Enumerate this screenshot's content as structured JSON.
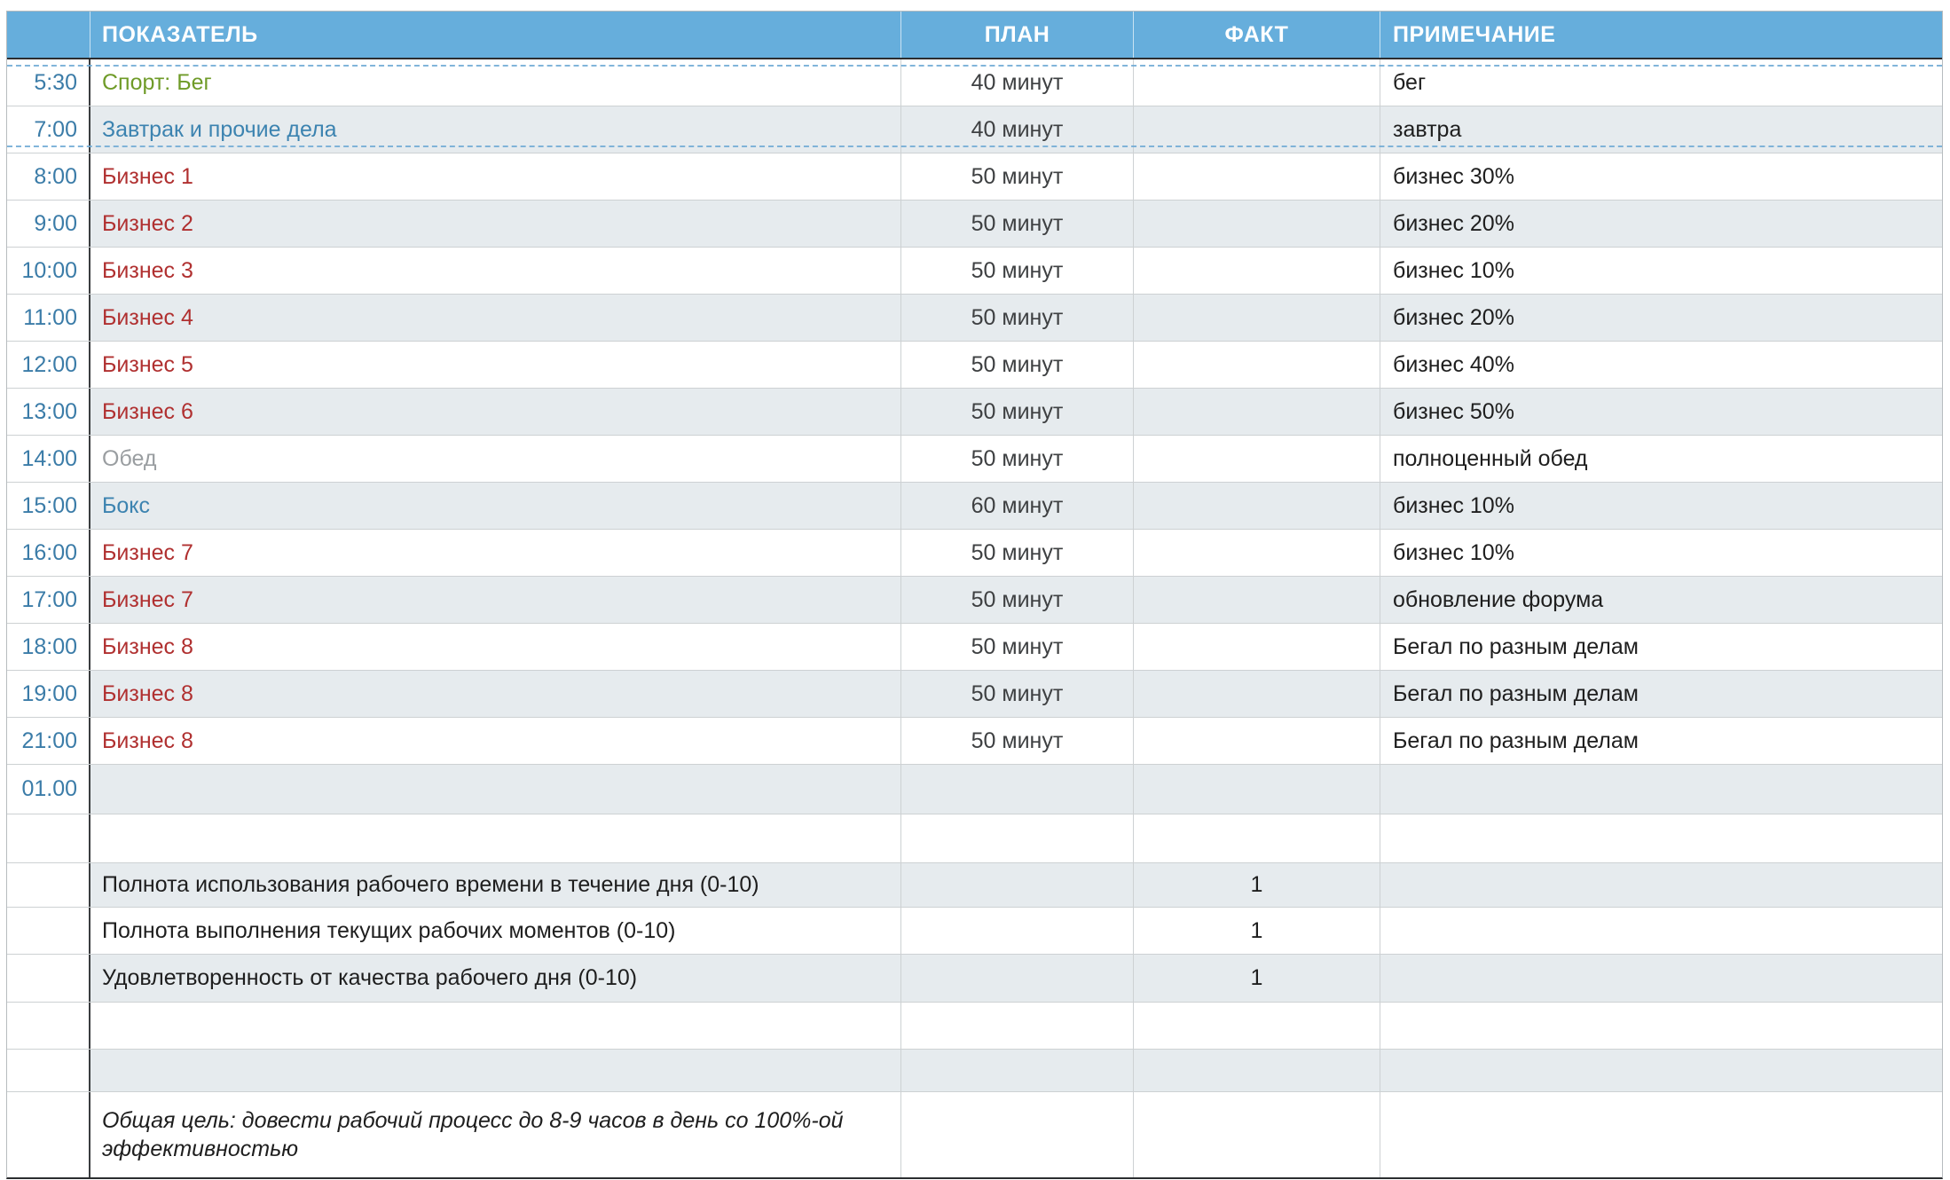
{
  "colors": {
    "header_bg": "#66AEDC",
    "header_text": "#FFFFFF",
    "time": "#3B7CA8",
    "green": "#6F9B28",
    "blue": "#3C83B0",
    "red": "#B03030",
    "gray": "#9A9EA1",
    "plan_text": "#3E4042",
    "note_text": "#1E1E1E",
    "tint": "#E6EBEE",
    "grid": "#CDD1D3",
    "dark": "#3A3D3F",
    "marquee": "#74ADD6"
  },
  "table": {
    "header": {
      "time": "",
      "indicator": "ПОКАЗАТЕЛЬ",
      "plan": "ПЛАН",
      "fact": "ФАКТ",
      "note": "ПРИМЕЧАНИЕ"
    },
    "rows": [
      {
        "kind": "schedule",
        "time": "5:30",
        "indicator": "Спорт: Бег",
        "color": "green",
        "plan": "40 минут",
        "fact": "",
        "note": "бег"
      },
      {
        "kind": "schedule",
        "time": "7:00",
        "indicator": "Завтрак и прочие дела",
        "color": "blue",
        "plan": "40 минут",
        "fact": "",
        "note": "завтра"
      },
      {
        "kind": "schedule",
        "time": "8:00",
        "indicator": "Бизнес 1",
        "color": "red",
        "plan": "50 минут",
        "fact": "",
        "note": "бизнес 30%"
      },
      {
        "kind": "schedule",
        "time": "9:00",
        "indicator": "Бизнес 2",
        "color": "red",
        "plan": "50 минут",
        "fact": "",
        "note": "бизнес 20%"
      },
      {
        "kind": "schedule",
        "time": "10:00",
        "indicator": "Бизнес 3",
        "color": "red",
        "plan": "50 минут",
        "fact": "",
        "note": "бизнес 10%"
      },
      {
        "kind": "schedule",
        "time": "11:00",
        "indicator": "Бизнес 4",
        "color": "red",
        "plan": "50 минут",
        "fact": "",
        "note": "бизнес 20%"
      },
      {
        "kind": "schedule",
        "time": "12:00",
        "indicator": "Бизнес 5",
        "color": "red",
        "plan": "50 минут",
        "fact": "",
        "note": "бизнес 40%"
      },
      {
        "kind": "schedule",
        "time": "13:00",
        "indicator": "Бизнес 6",
        "color": "red",
        "plan": "50 минут",
        "fact": "",
        "note": "бизнес 50%"
      },
      {
        "kind": "schedule",
        "time": "14:00",
        "indicator": "Обед",
        "color": "gray",
        "plan": "50 минут",
        "fact": "",
        "note": "полноценный обед"
      },
      {
        "kind": "schedule",
        "time": "15:00",
        "indicator": "Бокс",
        "color": "blue",
        "plan": "60 минут",
        "fact": "",
        "note": "бизнес 10%"
      },
      {
        "kind": "schedule",
        "time": "16:00",
        "indicator": "Бизнес 7",
        "color": "red",
        "plan": "50 минут",
        "fact": "",
        "note": "бизнес 10%"
      },
      {
        "kind": "schedule",
        "time": "17:00",
        "indicator": "Бизнес 7",
        "color": "red",
        "plan": "50 минут",
        "fact": "",
        "note": "обновление форума"
      },
      {
        "kind": "schedule",
        "time": "18:00",
        "indicator": "Бизнес 8",
        "color": "red",
        "plan": "50 минут",
        "fact": "",
        "note": "Бегал по разным делам"
      },
      {
        "kind": "schedule",
        "time": "19:00",
        "indicator": "Бизнес 8",
        "color": "red",
        "plan": "50 минут",
        "fact": "",
        "note": "Бегал по разным делам"
      },
      {
        "kind": "schedule",
        "time": "21:00",
        "indicator": "Бизнес 8",
        "color": "red",
        "plan": "50 минут",
        "fact": "",
        "note": "Бегал по разным делам"
      },
      {
        "kind": "schedule",
        "time": "01.00",
        "indicator": "",
        "color": "black",
        "plan": "",
        "fact": "",
        "note": ""
      },
      {
        "kind": "spacer",
        "time": "",
        "indicator": "",
        "color": "black",
        "plan": "",
        "fact": "",
        "note": ""
      },
      {
        "kind": "metric",
        "time": "",
        "indicator": "Полнота использования рабочего времени в течение дня (0-10)",
        "color": "black",
        "plan": "",
        "fact": "1",
        "note": ""
      },
      {
        "kind": "metric",
        "time": "",
        "indicator": "Полнота выполнения текущих рабочих моментов (0-10)",
        "color": "black",
        "plan": "",
        "fact": "1",
        "note": ""
      },
      {
        "kind": "metric",
        "time": "",
        "indicator": "Удовлетворенность от качества рабочего дня (0-10)",
        "color": "black",
        "plan": "",
        "fact": "1",
        "note": ""
      },
      {
        "kind": "spacer",
        "time": "",
        "indicator": "",
        "color": "black",
        "plan": "",
        "fact": "",
        "note": ""
      },
      {
        "kind": "spacer",
        "time": "",
        "indicator": "",
        "color": "black",
        "plan": "",
        "fact": "",
        "note": ""
      },
      {
        "kind": "goal",
        "time": "",
        "indicator": "Общая цель: довести рабочий процесс до 8-9 часов в день со 100%-ой эффективностью",
        "color": "black",
        "plan": "",
        "fact": "",
        "note": ""
      }
    ]
  }
}
